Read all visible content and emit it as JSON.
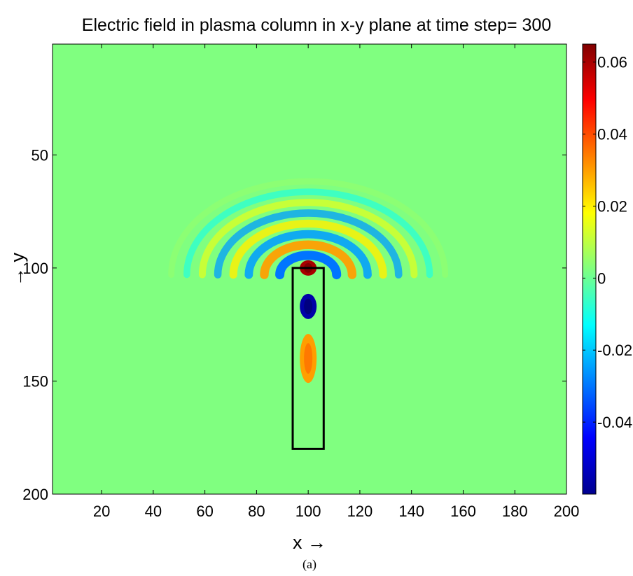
{
  "chart_data": {
    "type": "heatmap",
    "title": "Electric field in plasma column in x-y plane at time step= 300",
    "xlabel": "x →",
    "ylabel": "→ y",
    "caption": "(a)",
    "xlim": [
      1,
      200
    ],
    "ylim": [
      1,
      200
    ],
    "y_reversed": true,
    "x_ticks": [
      20,
      40,
      60,
      80,
      100,
      120,
      140,
      160,
      180,
      200
    ],
    "y_ticks": [
      50,
      100,
      150,
      200
    ],
    "colorbar": {
      "colormap": "jet",
      "range": [
        -0.06,
        0.065
      ],
      "ticks": [
        -0.04,
        -0.02,
        0,
        0.02,
        0.04,
        0.06
      ],
      "tick_labels": [
        "-0.04",
        "-0.02",
        "0",
        "0.02",
        "0.04",
        "0.06"
      ]
    },
    "plasma_column": {
      "x": [
        94,
        106
      ],
      "y": [
        100,
        180
      ]
    },
    "features": {
      "column_lobes": [
        {
          "x": 100,
          "y": 100,
          "value": 0.06
        },
        {
          "x": 100,
          "y": 117,
          "value": -0.055
        },
        {
          "x": 100,
          "y": 140,
          "value": 0.03
        }
      ],
      "wave_fronts": {
        "center": [
          100,
          103
        ],
        "radii": [
          11,
          17,
          23,
          29,
          35,
          41,
          47,
          53
        ],
        "peak_values": [
          -0.03,
          0.03,
          -0.025,
          0.02,
          -0.025,
          0.015,
          -0.01,
          0.005
        ]
      }
    }
  }
}
